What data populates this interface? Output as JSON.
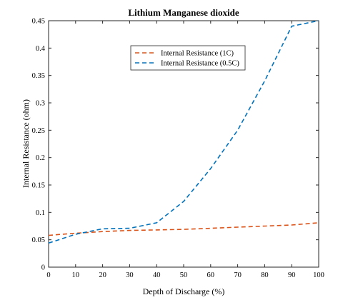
{
  "chart_data": {
    "type": "line",
    "title": "Lithium Manganese dioxide",
    "xlabel": "Depth of Discharge (%)",
    "ylabel": "Internal Resistance (ohm)",
    "xlim": [
      0,
      100
    ],
    "ylim": [
      0,
      0.45
    ],
    "xticks": [
      "0",
      "10",
      "20",
      "30",
      "40",
      "50",
      "60",
      "70",
      "80",
      "90",
      "100"
    ],
    "yticks": [
      "0",
      "0.05",
      "0.1",
      "0.15",
      "0.2",
      "0.25",
      "0.3",
      "0.35",
      "0.4",
      "0.45"
    ],
    "grid": false,
    "legend_position": "top-center",
    "series": [
      {
        "name": "Internal Resistance (1C)",
        "color": "#d95319",
        "x": [
          0,
          10,
          20,
          30,
          40,
          50,
          60,
          70,
          80,
          90,
          100
        ],
        "y": [
          0.058,
          0.062,
          0.065,
          0.067,
          0.068,
          0.069,
          0.071,
          0.073,
          0.075,
          0.077,
          0.081
        ]
      },
      {
        "name": "Internal Resistance  (0.5C)",
        "color": "#0072bd",
        "x": [
          0,
          10,
          20,
          30,
          40,
          50,
          60,
          70,
          80,
          90,
          100
        ],
        "y": [
          0.044,
          0.06,
          0.07,
          0.071,
          0.081,
          0.12,
          0.18,
          0.25,
          0.34,
          0.44,
          0.45
        ]
      }
    ]
  }
}
